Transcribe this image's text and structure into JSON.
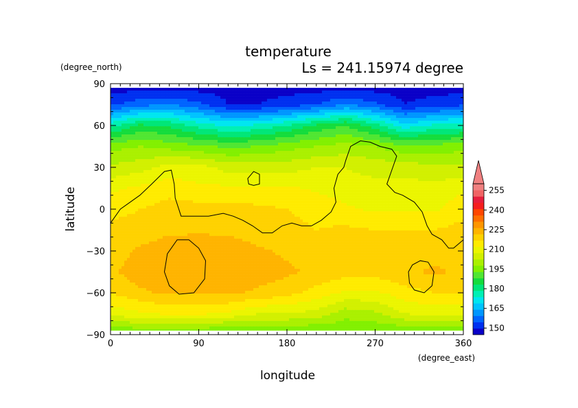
{
  "chart_data": {
    "type": "heatmap",
    "title": "temperature",
    "subtitle": "Ls = 241.15974 degree",
    "xlabel": "longitude",
    "ylabel": "latitude",
    "xunit": "(degree_east)",
    "yunit": "(degree_north)",
    "xlim": [
      0,
      360
    ],
    "ylim": [
      -90,
      90
    ],
    "xticks": [
      "0",
      "90",
      "180",
      "270",
      "360"
    ],
    "yticks": [
      "90",
      "60",
      "30",
      "0",
      "−30",
      "−60",
      "−90"
    ],
    "colorbar": {
      "labels": [
        "150",
        "165",
        "180",
        "195",
        "210",
        "225",
        "240",
        "255"
      ],
      "level_values": [
        145,
        150,
        155,
        160,
        165,
        170,
        175,
        180,
        185,
        190,
        195,
        200,
        205,
        210,
        215,
        220,
        225,
        230,
        235,
        240,
        245,
        250,
        255,
        260
      ],
      "level_colors": [
        "#0a00c8",
        "#0030f0",
        "#0064ff",
        "#0096ff",
        "#00c3ff",
        "#00e6f0",
        "#00f0b4",
        "#00e678",
        "#14dc3c",
        "#50e632",
        "#82f000",
        "#aaf000",
        "#d2f000",
        "#ebf500",
        "#ffeb00",
        "#ffd200",
        "#ffb400",
        "#ff9600",
        "#ff6e00",
        "#ff4600",
        "#f51e1e",
        "#e61e3c",
        "#f06464",
        "#f08080"
      ],
      "extend": "max"
    },
    "data_lat_range": [
      -87,
      87
    ],
    "field_columns_lon": [
      0,
      30,
      60,
      90,
      120,
      150,
      180,
      210,
      240,
      270,
      300,
      330,
      360
    ],
    "field_rows": [
      {
        "lat": 87,
        "values": [
          148,
          148,
          148,
          148,
          148,
          148,
          148,
          148,
          148,
          148,
          148,
          148,
          148
        ]
      },
      {
        "lat": 75,
        "values": [
          154,
          158,
          160,
          156,
          150,
          150,
          152,
          155,
          160,
          156,
          150,
          152,
          154
        ]
      },
      {
        "lat": 60,
        "values": [
          178,
          186,
          184,
          178,
          174,
          176,
          180,
          186,
          190,
          182,
          172,
          176,
          178
        ]
      },
      {
        "lat": 45,
        "values": [
          198,
          200,
          198,
          196,
          194,
          195,
          198,
          200,
          202,
          200,
          196,
          197,
          198
        ]
      },
      {
        "lat": 30,
        "values": [
          206,
          208,
          212,
          212,
          208,
          208,
          208,
          210,
          210,
          208,
          208,
          206,
          206
        ]
      },
      {
        "lat": 15,
        "values": [
          214,
          216,
          218,
          216,
          216,
          216,
          216,
          214,
          212,
          212,
          212,
          212,
          214
        ]
      },
      {
        "lat": 0,
        "values": [
          218,
          220,
          222,
          222,
          222,
          221,
          220,
          219,
          216,
          214,
          214,
          214,
          218
        ]
      },
      {
        "lat": -15,
        "values": [
          222,
          222,
          224,
          224,
          224,
          222,
          221,
          220,
          221,
          220,
          220,
          220,
          222
        ]
      },
      {
        "lat": -30,
        "values": [
          222,
          226,
          228,
          229,
          228,
          226,
          224,
          222,
          221,
          221,
          222,
          223,
          222
        ]
      },
      {
        "lat": -45,
        "values": [
          224,
          228,
          230,
          230,
          230,
          228,
          226,
          224,
          222,
          222,
          224,
          226,
          224
        ]
      },
      {
        "lat": -60,
        "values": [
          220,
          224,
          226,
          226,
          226,
          224,
          222,
          218,
          214,
          214,
          218,
          220,
          220
        ]
      },
      {
        "lat": -75,
        "values": [
          212,
          214,
          216,
          216,
          214,
          210,
          210,
          208,
          202,
          204,
          210,
          212,
          212
        ]
      },
      {
        "lat": -87,
        "values": [
          196,
          198,
          198,
          198,
          196,
          196,
          196,
          196,
          196,
          196,
          196,
          196,
          196
        ]
      }
    ],
    "contours": [
      {
        "name": "main",
        "closed": false,
        "points": [
          [
            0,
            -10
          ],
          [
            10,
            0
          ],
          [
            20,
            5
          ],
          [
            30,
            10
          ],
          [
            42,
            18
          ],
          [
            55,
            27
          ],
          [
            62,
            28
          ],
          [
            65,
            18
          ],
          [
            66,
            8
          ],
          [
            72,
            -5
          ],
          [
            85,
            -5
          ],
          [
            100,
            -5
          ],
          [
            115,
            -3
          ],
          [
            125,
            -5
          ],
          [
            135,
            -8
          ],
          [
            145,
            -12
          ],
          [
            155,
            -17
          ],
          [
            165,
            -17
          ],
          [
            175,
            -12
          ],
          [
            185,
            -10
          ],
          [
            195,
            -12
          ],
          [
            205,
            -12
          ],
          [
            215,
            -8
          ],
          [
            225,
            -2
          ],
          [
            230,
            5
          ],
          [
            228,
            15
          ],
          [
            232,
            25
          ],
          [
            238,
            30
          ],
          [
            240,
            35
          ],
          [
            245,
            45
          ],
          [
            255,
            49
          ],
          [
            265,
            48
          ],
          [
            275,
            45
          ],
          [
            287,
            43
          ],
          [
            292,
            38
          ],
          [
            288,
            30
          ],
          [
            282,
            18
          ],
          [
            290,
            12
          ],
          [
            298,
            10
          ],
          [
            310,
            5
          ],
          [
            318,
            -2
          ],
          [
            323,
            -12
          ],
          [
            328,
            -18
          ],
          [
            338,
            -22
          ],
          [
            345,
            -28
          ],
          [
            350,
            -28
          ],
          [
            360,
            -22
          ]
        ]
      },
      {
        "name": "northern-blob",
        "closed": true,
        "points": [
          [
            140,
            22
          ],
          [
            146,
            27
          ],
          [
            152,
            25
          ],
          [
            152,
            18
          ],
          [
            146,
            17
          ],
          [
            141,
            18
          ]
        ]
      },
      {
        "name": "southern-oval-west",
        "closed": true,
        "points": [
          [
            55,
            -45
          ],
          [
            58,
            -32
          ],
          [
            68,
            -22
          ],
          [
            80,
            -22
          ],
          [
            90,
            -28
          ],
          [
            97,
            -37
          ],
          [
            96,
            -50
          ],
          [
            85,
            -60
          ],
          [
            70,
            -61
          ],
          [
            60,
            -55
          ]
        ]
      },
      {
        "name": "southern-oval-east",
        "closed": true,
        "points": [
          [
            305,
            -53
          ],
          [
            304,
            -45
          ],
          [
            308,
            -40
          ],
          [
            316,
            -37
          ],
          [
            324,
            -38
          ],
          [
            330,
            -45
          ],
          [
            328,
            -55
          ],
          [
            320,
            -60
          ],
          [
            310,
            -58
          ]
        ]
      }
    ]
  }
}
